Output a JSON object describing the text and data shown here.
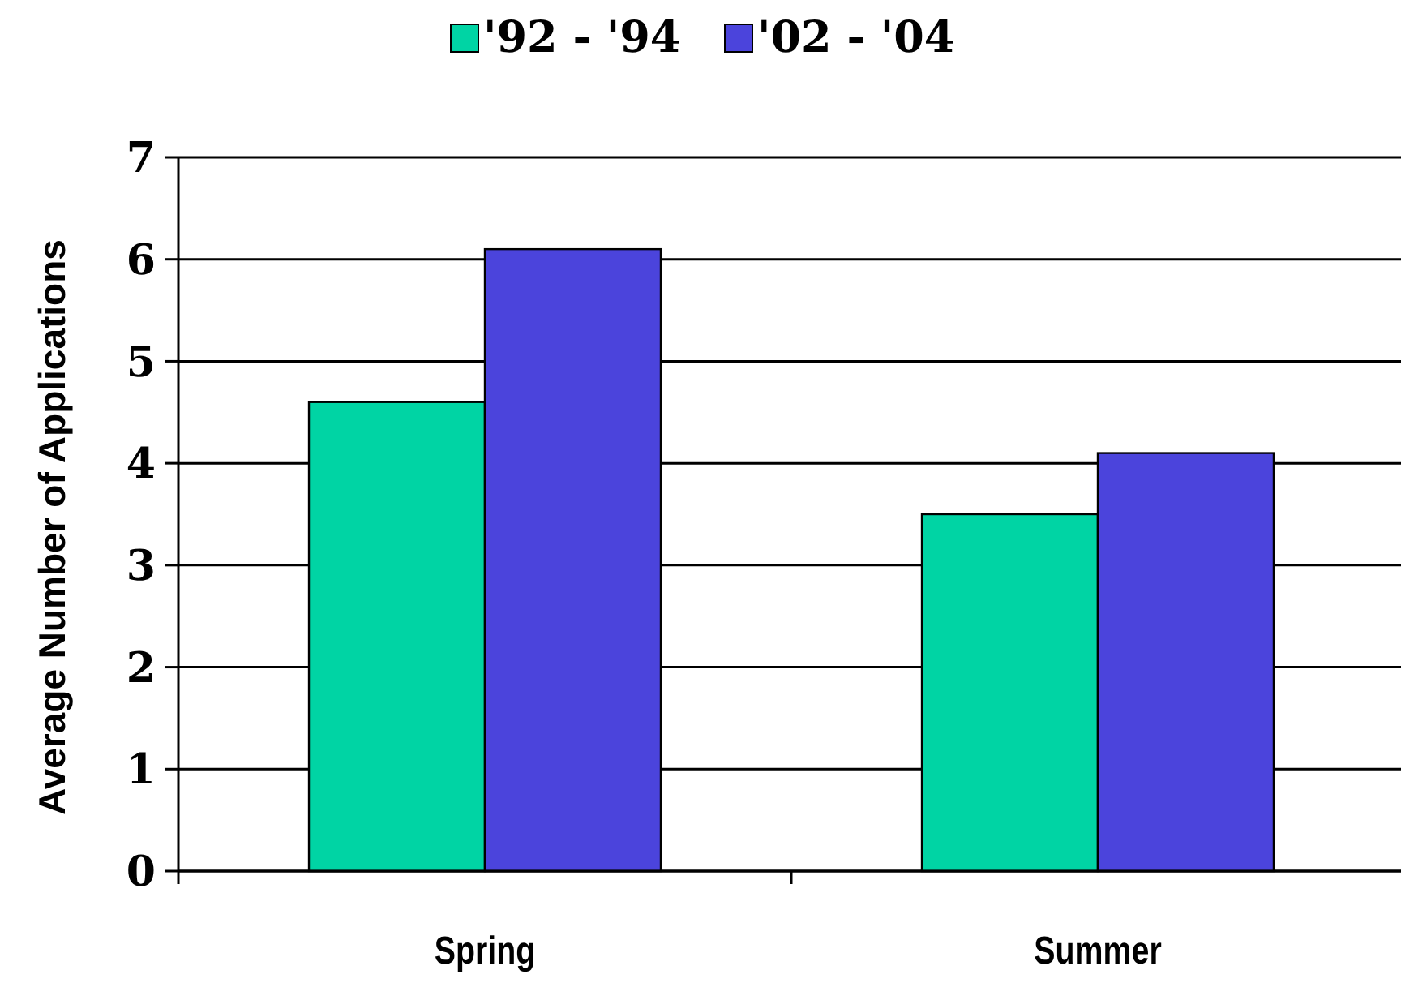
{
  "chart_data": {
    "type": "bar",
    "ylabel": "Average Number of Applications",
    "categories": [
      "Spring",
      "Summer"
    ],
    "series": [
      {
        "name": "'92 - '94",
        "color": "#00d4a4",
        "values": [
          4.6,
          3.5
        ]
      },
      {
        "name": "'02 - '04",
        "color": "#4b44dc",
        "values": [
          6.1,
          4.1
        ]
      }
    ],
    "ylim": [
      0,
      7
    ],
    "yticks": [
      0,
      1,
      2,
      3,
      4,
      5,
      6,
      7
    ],
    "grid": "y",
    "legend": "top"
  }
}
